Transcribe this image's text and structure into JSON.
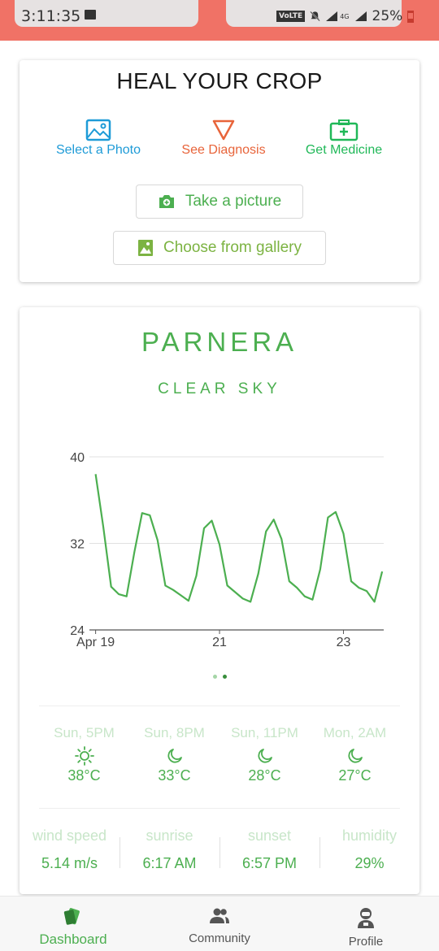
{
  "status_bar": {
    "time": "3:11:35",
    "network": "VoLTE",
    "signal_label": "4G",
    "battery": "25%"
  },
  "heal": {
    "title": "HEAL YOUR CROP",
    "steps": [
      {
        "label": "Select a Photo",
        "icon": "image-icon",
        "color": "#1e9bd7"
      },
      {
        "label": "See Diagnosis",
        "icon": "triangle-down-icon",
        "color": "#e8643a"
      },
      {
        "label": "Get Medicine",
        "icon": "medicine-kit-icon",
        "color": "#20b858"
      }
    ],
    "take_picture_label": "Take a picture",
    "gallery_label": "Choose from gallery"
  },
  "weather": {
    "place": "PARNERA",
    "condition": "CLEAR SKY",
    "forecast": [
      {
        "time": "Sun, 5PM",
        "icon": "sun-icon",
        "temp": "38°C"
      },
      {
        "time": "Sun, 8PM",
        "icon": "moon-icon",
        "temp": "33°C"
      },
      {
        "time": "Sun, 11PM",
        "icon": "moon-icon",
        "temp": "28°C"
      },
      {
        "time": "Mon, 2AM",
        "icon": "moon-icon",
        "temp": "27°C"
      }
    ],
    "stats": [
      {
        "label": "wind speed",
        "value": "5.14 m/s"
      },
      {
        "label": "sunrise",
        "value": "6:17 AM"
      },
      {
        "label": "sunset",
        "value": "6:57 PM"
      },
      {
        "label": "humidity",
        "value": "29%"
      }
    ],
    "pager": {
      "pages": 2,
      "active": 1
    }
  },
  "chart_data": {
    "type": "line",
    "ylim": [
      24,
      40
    ],
    "yticks": [
      "24",
      "32",
      "40"
    ],
    "xlim": [
      18.9,
      23.65
    ],
    "xticks": [
      {
        "x": 19,
        "label": "Apr 19"
      },
      {
        "x": 21,
        "label": "21"
      },
      {
        "x": 23,
        "label": "23"
      }
    ],
    "color": "#4caf50",
    "series": [
      {
        "x": [
          19.0,
          19.125,
          19.25,
          19.375,
          19.5,
          19.625,
          19.75,
          19.875,
          20.0,
          20.125,
          20.25,
          20.375,
          20.5,
          20.625,
          20.75,
          20.875,
          21.0,
          21.125,
          21.25,
          21.375,
          21.5,
          21.625,
          21.75,
          21.875,
          22.0,
          22.125,
          22.25,
          22.375,
          22.5,
          22.625,
          22.75,
          22.875,
          23.0,
          23.125,
          23.25,
          23.375,
          23.5,
          23.625
        ],
        "values": [
          38.4,
          33.5,
          28.0,
          27.3,
          27.1,
          31.2,
          34.8,
          34.6,
          32.3,
          28.1,
          27.7,
          27.2,
          26.7,
          29.0,
          33.4,
          34.1,
          31.9,
          28.1,
          27.5,
          26.9,
          26.6,
          29.2,
          33.1,
          34.2,
          32.4,
          28.5,
          27.9,
          27.1,
          26.8,
          29.6,
          34.4,
          34.9,
          32.9,
          28.5,
          27.9,
          27.6,
          26.6,
          29.4
        ]
      }
    ]
  },
  "nav": {
    "items": [
      {
        "label": "Dashboard",
        "icon": "dashboard-icon",
        "active": true
      },
      {
        "label": "Community",
        "icon": "community-icon",
        "active": false
      },
      {
        "label": "Profile",
        "icon": "profile-icon",
        "active": false
      }
    ]
  },
  "colors": {
    "status_bar": "#f07266",
    "accent_green": "#4caf50",
    "light_green": "#c8e6c9"
  }
}
